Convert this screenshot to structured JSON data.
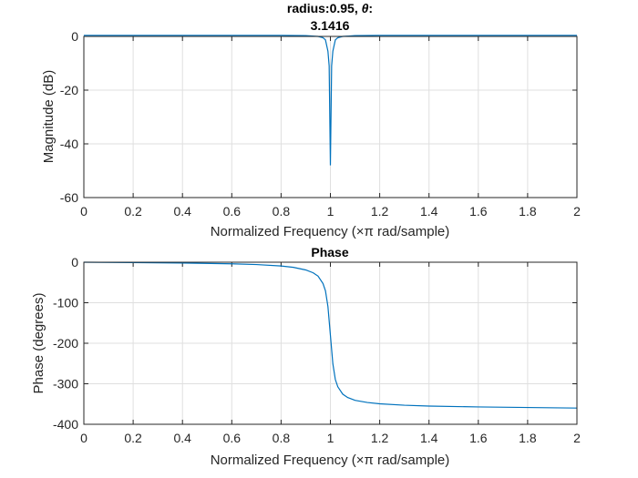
{
  "chart_data": [
    {
      "type": "line",
      "title_line1_prefix": "radius:0.95, ",
      "title_theta_symbol": "θ",
      "title_line1_suffix": ":",
      "title_line2": "3.1416",
      "xlabel_prefix": "Normalized Frequency  (",
      "xlabel_times_pi": "×π",
      "xlabel_suffix": " rad/sample)",
      "ylabel": "Magnitude (dB)",
      "xlim": [
        0,
        2
      ],
      "ylim": [
        -60,
        0
      ],
      "xticks": [
        "0",
        "0.2",
        "0.4",
        "0.6",
        "0.8",
        "1",
        "1.2",
        "1.4",
        "1.6",
        "1.8",
        "2"
      ],
      "xtick_values": [
        0,
        0.2,
        0.4,
        0.6,
        0.8,
        1,
        1.2,
        1.4,
        1.6,
        1.8,
        2
      ],
      "yticks": [
        "0",
        "-20",
        "-40",
        "-60"
      ],
      "ytick_values": [
        0,
        -20,
        -40,
        -60
      ],
      "grid": true,
      "line_color": "#0072bd",
      "series": [
        {
          "x": [
            0,
            0.5,
            0.8,
            0.9,
            0.95,
            0.97,
            0.98,
            0.99,
            0.995,
            1.0,
            1.005,
            1.01,
            1.02,
            1.03,
            1.05,
            1.1,
            1.2,
            1.5,
            2
          ],
          "y": [
            0.4,
            0.4,
            0.4,
            0.3,
            0.0,
            -0.5,
            -1.3,
            -5.5,
            -11.0,
            -48,
            -11.0,
            -5.5,
            -1.3,
            -0.5,
            0.0,
            0.3,
            0.4,
            0.4,
            0.4
          ]
        }
      ]
    },
    {
      "type": "line",
      "title": "Phase",
      "xlabel_prefix": "Normalized Frequency  (",
      "xlabel_times_pi": "×π",
      "xlabel_suffix": " rad/sample)",
      "ylabel": "Phase (degrees)",
      "xlim": [
        0,
        2
      ],
      "ylim": [
        -400,
        0
      ],
      "xticks": [
        "0",
        "0.2",
        "0.4",
        "0.6",
        "0.8",
        "1",
        "1.2",
        "1.4",
        "1.6",
        "1.8",
        "2"
      ],
      "xtick_values": [
        0,
        0.2,
        0.4,
        0.6,
        0.8,
        1,
        1.2,
        1.4,
        1.6,
        1.8,
        2
      ],
      "yticks": [
        "0",
        "-100",
        "-200",
        "-300",
        "-400"
      ],
      "ytick_values": [
        0,
        -100,
        -200,
        -300,
        -400
      ],
      "grid": true,
      "line_color": "#0072bd",
      "series": [
        {
          "x": [
            0,
            0.2,
            0.4,
            0.6,
            0.7,
            0.8,
            0.85,
            0.9,
            0.93,
            0.95,
            0.97,
            0.98,
            0.99,
            1.0,
            1.01,
            1.02,
            1.03,
            1.05,
            1.07,
            1.1,
            1.15,
            1.2,
            1.3,
            1.4,
            1.6,
            1.8,
            2.0
          ],
          "y": [
            0,
            -0.9,
            -2,
            -4,
            -5.8,
            -9.3,
            -12.7,
            -19.1,
            -26.1,
            -34.4,
            -52.6,
            -70.6,
            -109.4,
            -180,
            -250.6,
            -289.4,
            -307.4,
            -325.6,
            -333.9,
            -340.9,
            -346.2,
            -349.4,
            -353.0,
            -355.0,
            -357.2,
            -358.6,
            -360
          ]
        }
      ]
    }
  ]
}
